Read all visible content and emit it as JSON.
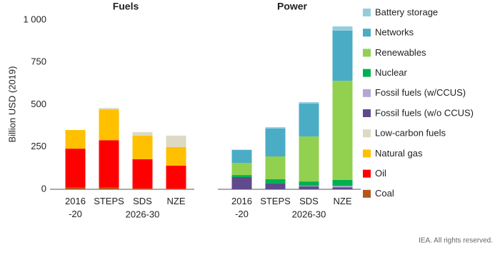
{
  "chart_data": [
    {
      "type": "bar",
      "stacked": true,
      "title": "Fuels",
      "ylabel": "Billion USD (2019)",
      "ylim": [
        0,
        1000
      ],
      "yticks": [
        0,
        250,
        500,
        750,
        {
          "value": 1000,
          "label": "1 000"
        }
      ],
      "categories": [
        "2016\n-20",
        "STEPS",
        "SDS",
        "NZE"
      ],
      "group_label": "2026-30",
      "series": [
        {
          "name": "Coal",
          "color": "#b5571c",
          "values": [
            10,
            10,
            5,
            3
          ]
        },
        {
          "name": "Oil",
          "color": "#ff0000",
          "values": [
            230,
            280,
            173,
            137
          ]
        },
        {
          "name": "Natural gas",
          "color": "#ffc000",
          "values": [
            110,
            182,
            139,
            110
          ]
        },
        {
          "name": "Low-carbon fuels",
          "color": "#ddd9c3",
          "values": [
            0,
            8,
            21,
            67
          ]
        }
      ]
    },
    {
      "type": "bar",
      "stacked": true,
      "title": "Power",
      "ylim": [
        0,
        1000
      ],
      "categories": [
        "2016\n-20",
        "STEPS",
        "SDS",
        "NZE"
      ],
      "group_label": "2026-30",
      "series": [
        {
          "name": "Fossil fuels (w/o CCUS)",
          "color": "#5f4b8b",
          "values": [
            72,
            34,
            17,
            12
          ]
        },
        {
          "name": "Fossil fuels (w/CCUS)",
          "color": "#b4a7d6",
          "values": [
            0,
            0,
            3,
            8
          ]
        },
        {
          "name": "Nuclear",
          "color": "#00b050",
          "values": [
            12,
            25,
            26,
            35
          ]
        },
        {
          "name": "Renewables",
          "color": "#92d050",
          "values": [
            72,
            135,
            266,
            586
          ]
        },
        {
          "name": "Networks",
          "color": "#4bacc6",
          "values": [
            76,
            165,
            194,
            296
          ]
        },
        {
          "name": "Battery storage",
          "color": "#93cddd",
          "values": [
            2,
            8,
            9,
            25
          ]
        }
      ]
    }
  ],
  "footer": "IEA. All rights reserved."
}
